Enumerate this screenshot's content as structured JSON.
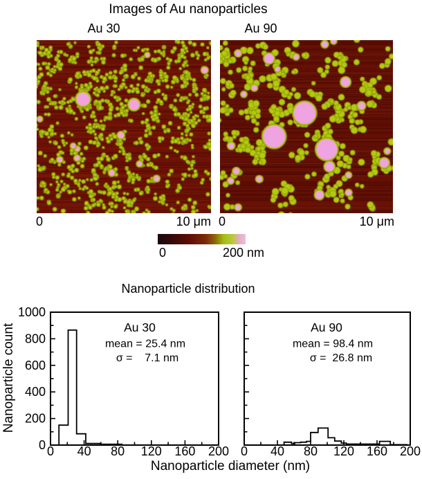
{
  "figure": {
    "title": "Images of Au nanoparticles",
    "distribution_title": "Nanoparticle distribution"
  },
  "afm": {
    "images": [
      {
        "label": "Au 30",
        "scale_min_label": "0",
        "scale_max_label": "10 μm",
        "texture": {
          "background": "#6b1004",
          "particle_color": "#b9ce12",
          "particle_rim": "#8c9b08",
          "pink_color": "#f2a2dc",
          "clusters": 560,
          "cluster_size": 3,
          "spread": 4,
          "dot_r": [
            1.1,
            2.4
          ],
          "pink_count": 12,
          "pink_r": [
            2.5,
            5
          ],
          "big_pink": 2,
          "seed": 12
        }
      },
      {
        "label": "Au 90",
        "scale_min_label": "0",
        "scale_max_label": "10 μm",
        "texture": {
          "background": "#5f0e04",
          "particle_color": "#b4ca10",
          "particle_rim": "#8f9e07",
          "pink_color": "#efa3e0",
          "clusters": 110,
          "cluster_size": 6,
          "spread": 10,
          "dot_r": [
            2.0,
            4.5
          ],
          "pink_count": 22,
          "pink_r": [
            3,
            7
          ],
          "big_pink": 3,
          "seed": 99
        }
      }
    ],
    "colorbar": {
      "min_label": "0",
      "max_label": "200 nm",
      "gradient": [
        [
          0,
          "#1b0810"
        ],
        [
          15,
          "#33090a"
        ],
        [
          35,
          "#5c0c06"
        ],
        [
          55,
          "#7c2a07"
        ],
        [
          65,
          "#8d6509"
        ],
        [
          75,
          "#a3bd10"
        ],
        [
          85,
          "#bcc83a"
        ],
        [
          93,
          "#e2aec8"
        ],
        [
          100,
          "#f0bcdc"
        ]
      ]
    }
  },
  "axes": {
    "xlabel": "Nanoparticle diameter (nm)",
    "ylabel": "Nanoparticle count"
  },
  "chart_data": [
    {
      "type": "histogram-step",
      "title": "Au 30",
      "mean_nm": 25.4,
      "sigma_nm": 7.1,
      "mean_label": "mean = 25.4 nm",
      "sigma_label": "σ =    7.1 nm",
      "xlabel": "Nanoparticle diameter (nm)",
      "ylabel": "Nanoparticle count",
      "xlim": [
        0,
        200
      ],
      "ylim": [
        0,
        1000
      ],
      "xticks": [
        0,
        40,
        80,
        120,
        160,
        200
      ],
      "yticks": [
        0,
        200,
        400,
        600,
        800,
        1000
      ],
      "x_minor_step": 20,
      "y_minor_step": 100,
      "show_ytick_labels": true,
      "grid": false,
      "steps": [
        [
          0,
          0
        ],
        [
          10,
          150
        ],
        [
          21,
          865
        ],
        [
          31,
          85
        ],
        [
          42,
          12
        ],
        [
          59,
          6
        ],
        [
          85,
          0
        ],
        [
          200,
          0
        ]
      ]
    },
    {
      "type": "histogram-step",
      "title": "Au 90",
      "mean_nm": 98.4,
      "sigma_nm": 26.8,
      "mean_label": "mean = 98.4 nm",
      "sigma_label": "σ =  26.8 nm",
      "xlabel": "Nanoparticle diameter (nm)",
      "ylabel": "Nanoparticle count",
      "xlim": [
        0,
        200
      ],
      "ylim": [
        0,
        1000
      ],
      "xticks": [
        0,
        40,
        80,
        120,
        160,
        200
      ],
      "yticks": [
        0,
        200,
        400,
        600,
        800,
        1000
      ],
      "x_minor_step": 20,
      "y_minor_step": 100,
      "show_ytick_labels": false,
      "grid": false,
      "steps": [
        [
          0,
          0
        ],
        [
          48,
          22
        ],
        [
          57,
          12
        ],
        [
          61,
          18
        ],
        [
          68,
          22
        ],
        [
          75,
          28
        ],
        [
          80,
          95
        ],
        [
          89,
          128
        ],
        [
          101,
          55
        ],
        [
          109,
          30
        ],
        [
          117,
          15
        ],
        [
          123,
          8
        ],
        [
          163,
          28
        ],
        [
          176,
          3
        ],
        [
          196,
          0
        ],
        [
          200,
          0
        ]
      ]
    }
  ]
}
